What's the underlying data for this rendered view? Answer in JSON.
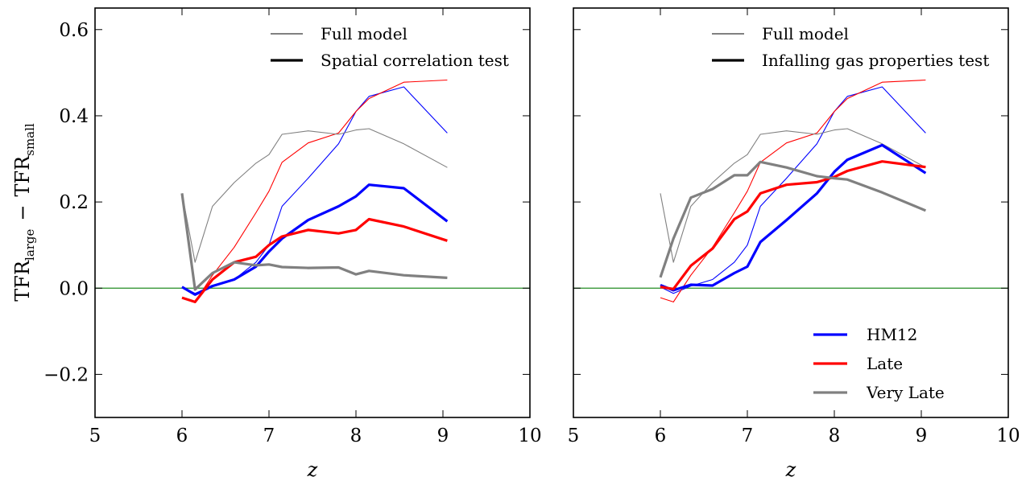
{
  "figure": {
    "ylabel": "TFR",
    "ylabel_sub_1": "large",
    "ylabel_minus": "−",
    "ylabel_sub_2": "small",
    "xlabel": "z"
  },
  "chart_data": [
    {
      "type": "line",
      "panel": "left",
      "xlim": [
        5,
        10
      ],
      "ylim": [
        -0.3,
        0.65
      ],
      "xticks": [
        5,
        6,
        7,
        8,
        9,
        10
      ],
      "yticks": [
        -0.2,
        0.0,
        0.2,
        0.4,
        0.6
      ],
      "ytick_labels": [
        "−0.2",
        "0.0",
        "0.2",
        "0.4",
        "0.6"
      ],
      "xtick_labels": [
        "5",
        "6",
        "7",
        "8",
        "9",
        "10"
      ],
      "show_ytick_labels": true,
      "zero_line": {
        "y": 0.0,
        "color": "#228b22"
      },
      "style_legend": [
        {
          "label": "Full model",
          "style": "thin"
        },
        {
          "label": "Spatial correlation test",
          "style": "thick"
        }
      ],
      "series": [
        {
          "group": "HM12",
          "style": "thin",
          "color": "#0000ff",
          "x": [
            6.0,
            6.15,
            6.35,
            6.6,
            6.85,
            7.0,
            7.15,
            7.45,
            7.8,
            8.0,
            8.15,
            8.55,
            9.05
          ],
          "y": [
            0.003,
            -0.012,
            0.005,
            0.02,
            0.06,
            0.1,
            0.19,
            0.255,
            0.335,
            0.41,
            0.445,
            0.467,
            0.36
          ]
        },
        {
          "group": "HM12",
          "style": "thick",
          "color": "#0000ff",
          "x": [
            6.0,
            6.15,
            6.35,
            6.6,
            6.85,
            7.0,
            7.15,
            7.45,
            7.8,
            8.0,
            8.15,
            8.55,
            9.05
          ],
          "y": [
            0.003,
            -0.015,
            0.005,
            0.02,
            0.05,
            0.085,
            0.115,
            0.158,
            0.19,
            0.213,
            0.24,
            0.232,
            0.155
          ]
        },
        {
          "group": "Late",
          "style": "thin",
          "color": "#ff0000",
          "x": [
            6.0,
            6.15,
            6.35,
            6.6,
            6.85,
            7.0,
            7.15,
            7.45,
            7.8,
            8.0,
            8.15,
            8.55,
            9.05
          ],
          "y": [
            -0.022,
            -0.032,
            0.03,
            0.095,
            0.175,
            0.225,
            0.292,
            0.337,
            0.36,
            0.41,
            0.44,
            0.478,
            0.483
          ]
        },
        {
          "group": "Late",
          "style": "thick",
          "color": "#ff0000",
          "x": [
            6.0,
            6.15,
            6.35,
            6.6,
            6.85,
            7.0,
            7.15,
            7.45,
            7.8,
            8.0,
            8.15,
            8.55,
            9.05
          ],
          "y": [
            -0.022,
            -0.032,
            0.02,
            0.06,
            0.073,
            0.1,
            0.12,
            0.135,
            0.127,
            0.135,
            0.16,
            0.143,
            0.11
          ]
        },
        {
          "group": "Very Late",
          "style": "thin",
          "color": "#808080",
          "x": [
            6.0,
            6.15,
            6.35,
            6.6,
            6.85,
            7.0,
            7.15,
            7.45,
            7.8,
            8.0,
            8.15,
            8.55,
            9.05
          ],
          "y": [
            0.22,
            0.06,
            0.19,
            0.245,
            0.29,
            0.31,
            0.357,
            0.365,
            0.357,
            0.367,
            0.37,
            0.335,
            0.28
          ]
        },
        {
          "group": "Very Late",
          "style": "thick",
          "color": "#808080",
          "x": [
            6.0,
            6.15,
            6.35,
            6.6,
            6.85,
            7.0,
            7.15,
            7.45,
            7.8,
            8.0,
            8.15,
            8.55,
            9.05
          ],
          "y": [
            0.22,
            -0.003,
            0.035,
            0.06,
            0.053,
            0.055,
            0.049,
            0.047,
            0.048,
            0.032,
            0.04,
            0.03,
            0.024
          ]
        }
      ]
    },
    {
      "type": "line",
      "panel": "right",
      "xlim": [
        5,
        10
      ],
      "ylim": [
        -0.3,
        0.65
      ],
      "xticks": [
        5,
        6,
        7,
        8,
        9,
        10
      ],
      "yticks": [
        -0.2,
        0.0,
        0.2,
        0.4,
        0.6
      ],
      "xtick_labels": [
        "5",
        "6",
        "7",
        "8",
        "9",
        "10"
      ],
      "show_ytick_labels": false,
      "zero_line": {
        "y": 0.0,
        "color": "#228b22"
      },
      "style_legend": [
        {
          "label": "Full model",
          "style": "thin"
        },
        {
          "label": "Infalling gas properties test",
          "style": "thick"
        }
      ],
      "color_legend": [
        {
          "label": "HM12",
          "color": "#0000ff"
        },
        {
          "label": "Late",
          "color": "#ff0000"
        },
        {
          "label": "Very Late",
          "color": "#808080"
        }
      ],
      "series": [
        {
          "group": "HM12",
          "style": "thin",
          "color": "#0000ff",
          "x": [
            6.0,
            6.15,
            6.35,
            6.6,
            6.85,
            7.0,
            7.15,
            7.45,
            7.8,
            8.0,
            8.15,
            8.55,
            9.05
          ],
          "y": [
            0.003,
            -0.012,
            0.005,
            0.02,
            0.06,
            0.1,
            0.19,
            0.255,
            0.335,
            0.41,
            0.445,
            0.467,
            0.36
          ]
        },
        {
          "group": "HM12",
          "style": "thick",
          "color": "#0000ff",
          "x": [
            6.0,
            6.15,
            6.35,
            6.6,
            6.85,
            7.0,
            7.15,
            7.45,
            7.8,
            8.0,
            8.15,
            8.55,
            9.05
          ],
          "y": [
            0.007,
            -0.005,
            0.008,
            0.006,
            0.035,
            0.05,
            0.107,
            0.158,
            0.22,
            0.27,
            0.298,
            0.332,
            0.267
          ]
        },
        {
          "group": "Late",
          "style": "thin",
          "color": "#ff0000",
          "x": [
            6.0,
            6.15,
            6.35,
            6.6,
            6.85,
            7.0,
            7.15,
            7.45,
            7.8,
            8.0,
            8.15,
            8.55,
            9.05
          ],
          "y": [
            -0.022,
            -0.032,
            0.03,
            0.095,
            0.175,
            0.225,
            0.292,
            0.337,
            0.36,
            0.41,
            0.44,
            0.478,
            0.483
          ]
        },
        {
          "group": "Late",
          "style": "thick",
          "color": "#ff0000",
          "x": [
            6.0,
            6.15,
            6.35,
            6.6,
            6.85,
            7.0,
            7.15,
            7.45,
            7.8,
            8.0,
            8.15,
            8.55,
            9.05
          ],
          "y": [
            0.003,
            -0.002,
            0.052,
            0.092,
            0.16,
            0.178,
            0.22,
            0.24,
            0.246,
            0.258,
            0.272,
            0.294,
            0.281
          ]
        },
        {
          "group": "Very Late",
          "style": "thin",
          "color": "#808080",
          "x": [
            6.0,
            6.15,
            6.35,
            6.6,
            6.85,
            7.0,
            7.15,
            7.45,
            7.8,
            8.0,
            8.15,
            8.55,
            9.05
          ],
          "y": [
            0.22,
            0.06,
            0.19,
            0.245,
            0.29,
            0.31,
            0.357,
            0.365,
            0.357,
            0.367,
            0.37,
            0.335,
            0.28
          ]
        },
        {
          "group": "Very Late",
          "style": "thick",
          "color": "#808080",
          "x": [
            6.0,
            6.15,
            6.35,
            6.6,
            6.85,
            7.0,
            7.15,
            7.45,
            7.8,
            8.0,
            8.15,
            8.55,
            9.05
          ],
          "y": [
            0.025,
            0.115,
            0.21,
            0.23,
            0.262,
            0.262,
            0.293,
            0.28,
            0.26,
            0.255,
            0.252,
            0.222,
            0.18
          ]
        }
      ]
    }
  ]
}
